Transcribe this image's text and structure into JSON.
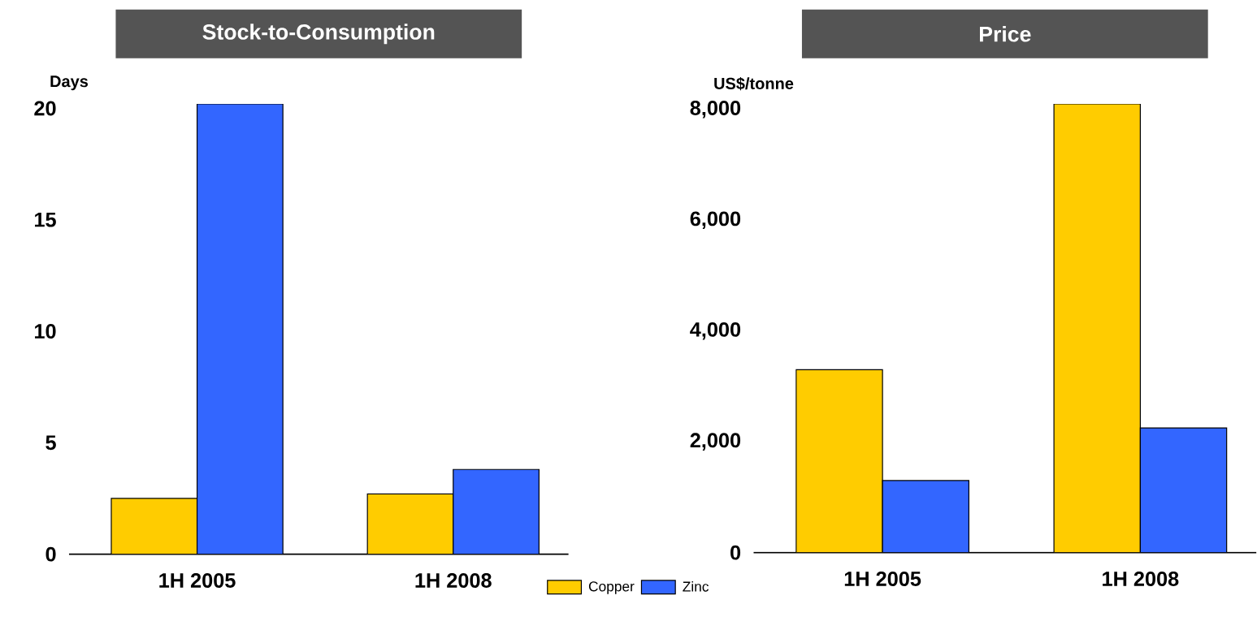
{
  "chart_data": [
    {
      "type": "bar",
      "title": "Stock-to-Consumption",
      "ylabel": "Days",
      "categories": [
        "1H 2005",
        "1H 2008"
      ],
      "series": [
        {
          "name": "Copper",
          "color": "#ffcc00",
          "values": [
            2.5,
            2.7
          ]
        },
        {
          "name": "Zinc",
          "color": "#3366ff",
          "values": [
            20.2,
            3.8
          ]
        }
      ],
      "ylim": [
        0,
        20.2
      ],
      "yticks": [
        0,
        5,
        10,
        15,
        20
      ],
      "legend": "bottom right"
    },
    {
      "type": "bar",
      "title": "Price",
      "ylabel": "US$/tonne",
      "categories": [
        "1H 2005",
        "1H 2008"
      ],
      "series": [
        {
          "color": "#ffcc00",
          "values": [
            3300,
            8100
          ]
        },
        {
          "color": "#3366ff",
          "values": [
            1300,
            2250
          ]
        }
      ],
      "ylim": [
        0,
        8100
      ],
      "yticks": [
        0,
        {
          "value": 2000,
          "label": "2,000"
        },
        {
          "value": 4000,
          "label": "4,000"
        },
        {
          "value": 6000,
          "label": "6,000"
        },
        {
          "value": 8000,
          "label": "8,000"
        }
      ],
      "legend": false
    }
  ]
}
